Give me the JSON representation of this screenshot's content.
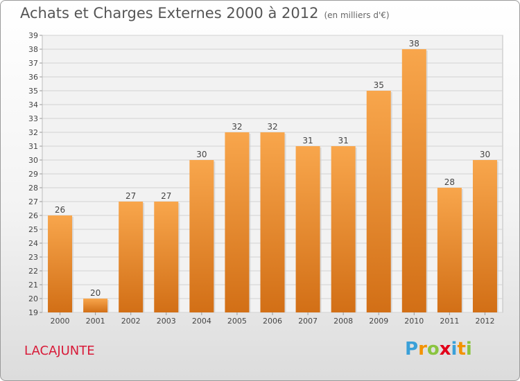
{
  "header": {
    "title": "Achats et Charges Externes 2000 à 2012",
    "subtitle": "(en milliers d'€)"
  },
  "footer": {
    "town": "LACAJUNTE",
    "brand_letters": [
      "P",
      "r",
      "o",
      "x",
      "i",
      "t",
      "i"
    ],
    "brand_colors": [
      "#3aa0d8",
      "#f39200",
      "#8ac43f",
      "#e2001a",
      "#3aa0d8",
      "#f39200",
      "#8ac43f"
    ]
  },
  "chart_data": {
    "type": "bar",
    "categories": [
      "2000",
      "2001",
      "2002",
      "2003",
      "2004",
      "2005",
      "2006",
      "2007",
      "2008",
      "2009",
      "2010",
      "2011",
      "2012"
    ],
    "values": [
      26,
      20,
      27,
      27,
      30,
      32,
      32,
      31,
      31,
      35,
      38,
      28,
      30
    ],
    "data_labels": [
      "26",
      "20",
      "27",
      "27",
      "30",
      "32",
      "32",
      "31",
      "31",
      "35",
      "38",
      "28",
      "30"
    ],
    "ylim": [
      19,
      39
    ],
    "yticks": [
      "19",
      "20",
      "21",
      "22",
      "23",
      "24",
      "25",
      "26",
      "27",
      "28",
      "29",
      "30",
      "31",
      "32",
      "33",
      "34",
      "35",
      "36",
      "37",
      "38",
      "39"
    ],
    "grid": true,
    "bar_color_top": "#f8a64c",
    "bar_color_bottom": "#d26f16"
  }
}
